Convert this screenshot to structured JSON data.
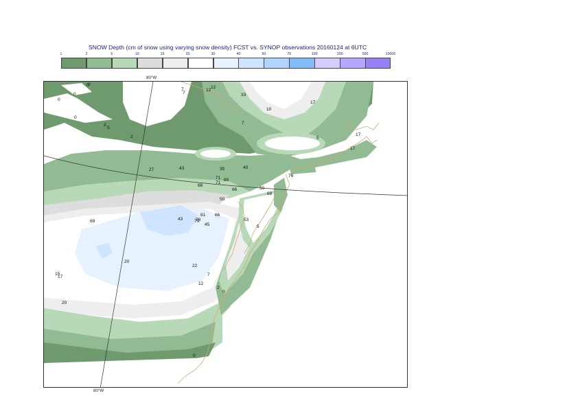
{
  "title": "SNOW Depth (cm of snow using varying snow density) FCST vs. SYNOP observations  20160124 at 6UTC",
  "legend": {
    "ticks": [
      "1",
      "2",
      "5",
      "10",
      "15",
      "20",
      "30",
      "40",
      "50",
      "70",
      "100",
      "200",
      "500",
      "10000"
    ],
    "colors": [
      "#6e9a6e",
      "#93bb93",
      "#b8d9b8",
      "#dddddd",
      "#eeeeee",
      "#ffffff",
      "#e6f2ff",
      "#cfe5ff",
      "#aed4ff",
      "#83bdf8",
      "#d6ccff",
      "#b7a6ff",
      "#9a80f7"
    ]
  },
  "map": {
    "lon_label_top": "80°W",
    "lon_label_bottom": "80°W",
    "colors": {
      "dark_green": "#6e9a6e",
      "mid_green": "#93bb93",
      "light_green": "#b8d9b8",
      "gray": "#dddddd",
      "light_gray": "#eeeeee",
      "blue_light": "#e6f2ff",
      "blue": "#cfe5ff",
      "coast": "#d4a66a"
    },
    "observations": [
      "0",
      "0",
      "0",
      "0",
      "0",
      "2",
      "5",
      "2",
      "7",
      "7",
      "12",
      "12",
      "33",
      "10",
      "17",
      "7",
      "5",
      "17",
      "17",
      "27",
      "43",
      "35",
      "40",
      "71",
      "76",
      "68",
      "71",
      "60",
      "66",
      "50",
      "69",
      "50",
      "68",
      "43",
      "81",
      "78",
      "79",
      "66",
      "45",
      "53",
      "5",
      "20",
      "22",
      "7",
      "12",
      "2",
      "0",
      "15",
      "17",
      "20",
      "0"
    ]
  }
}
